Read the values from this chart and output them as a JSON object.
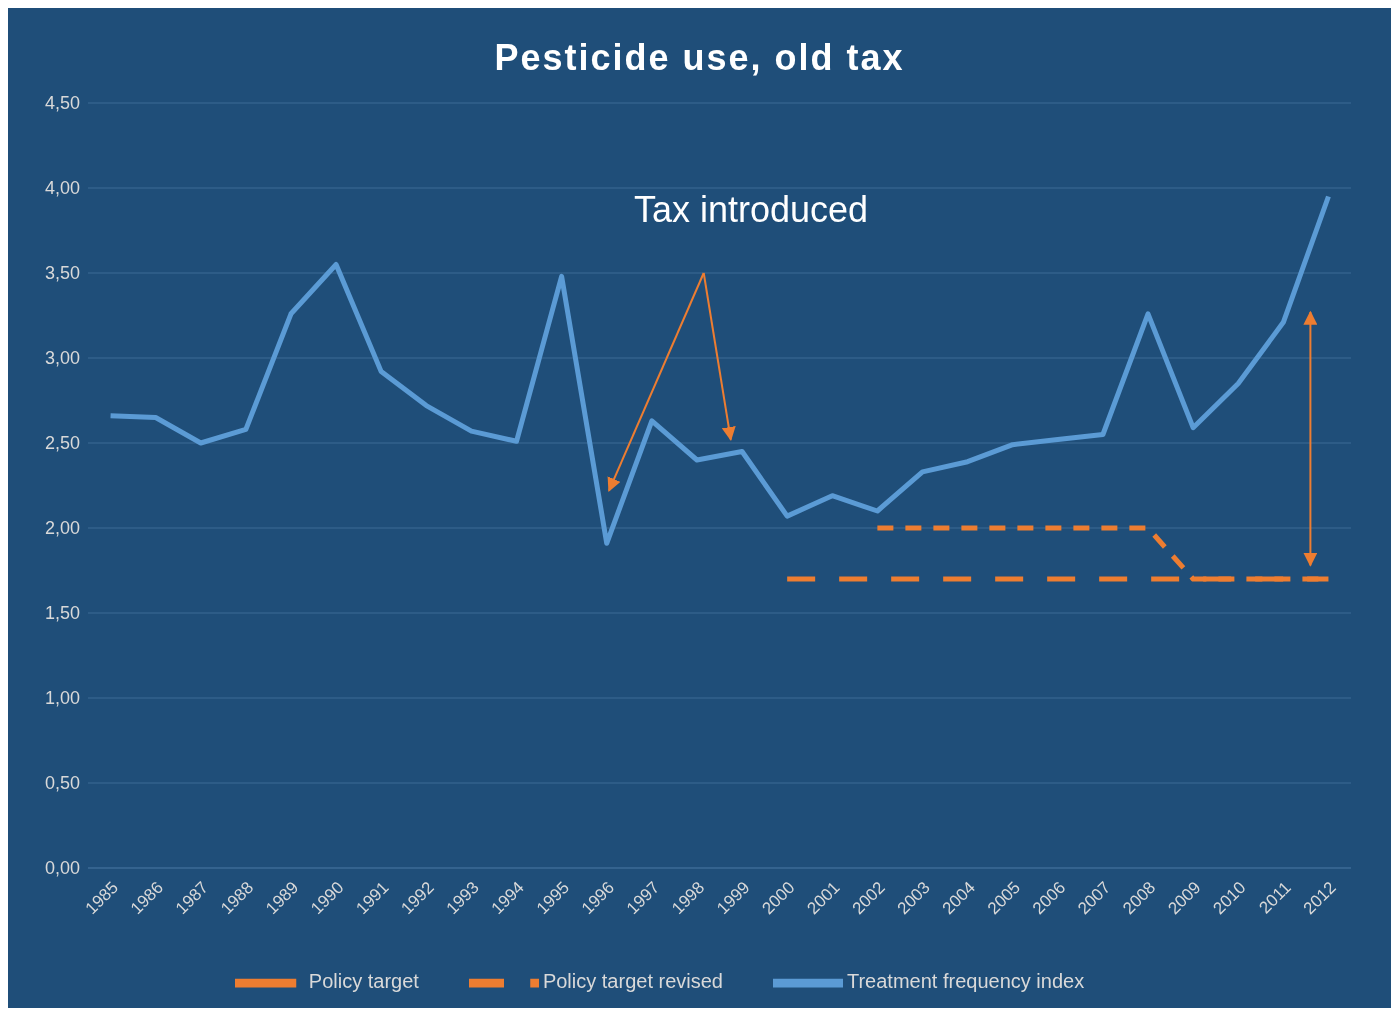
{
  "chart_data": {
    "type": "line",
    "title": "Pesticide use, old tax",
    "annotations": [
      "Tax introduced"
    ],
    "categories": [
      "1985",
      "1986",
      "1987",
      "1988",
      "1989",
      "1990",
      "1991",
      "1992",
      "1993",
      "1994",
      "1995",
      "1996",
      "1997",
      "1998",
      "1999",
      "2000",
      "2001",
      "2002",
      "2003",
      "2004",
      "2005",
      "2006",
      "2007",
      "2008",
      "2009",
      "2010",
      "2011",
      "2012"
    ],
    "series": [
      {
        "name": "Treatment frequency index",
        "color": "#5b9bd5",
        "values": [
          2.66,
          2.65,
          2.5,
          2.58,
          3.26,
          3.55,
          2.92,
          2.72,
          2.57,
          2.51,
          3.48,
          1.91,
          2.63,
          2.4,
          2.45,
          2.07,
          2.19,
          2.1,
          2.33,
          2.39,
          2.49,
          2.52,
          2.55,
          3.26,
          2.59,
          2.85,
          3.21,
          3.95
        ]
      },
      {
        "name": "Policy target",
        "color": "#ed7d31",
        "line_style": "dashed",
        "values": [
          null,
          null,
          null,
          null,
          null,
          null,
          null,
          null,
          null,
          null,
          null,
          null,
          null,
          null,
          null,
          1.7,
          1.7,
          1.7,
          1.7,
          1.7,
          1.7,
          1.7,
          1.7,
          1.7,
          1.7,
          1.7,
          1.7,
          1.7
        ]
      },
      {
        "name": "Policy target revised",
        "color": "#ed7d31",
        "line_style": "dashed",
        "values": [
          null,
          null,
          null,
          null,
          null,
          null,
          null,
          null,
          null,
          null,
          null,
          null,
          null,
          null,
          null,
          null,
          null,
          2.0,
          2.0,
          2.0,
          2.0,
          2.0,
          2.0,
          2.0,
          1.7,
          1.7,
          1.7,
          1.7
        ]
      }
    ],
    "ylim": [
      0,
      4.5
    ],
    "yticks": [
      {
        "value": 0,
        "label": "0,00"
      },
      {
        "value": 0.5,
        "label": "0,50"
      },
      {
        "value": 1,
        "label": "1,00"
      },
      {
        "value": 1.5,
        "label": "1,50"
      },
      {
        "value": 2,
        "label": "2,00"
      },
      {
        "value": 2.5,
        "label": "2,50"
      },
      {
        "value": 3,
        "label": "3,00"
      },
      {
        "value": 3.5,
        "label": "3,50"
      },
      {
        "value": 4,
        "label": "4,00"
      },
      {
        "value": 4.5,
        "label": "4,50"
      }
    ],
    "grid": "y",
    "legend": "bottom",
    "marker": "none",
    "line_style": "solid"
  }
}
